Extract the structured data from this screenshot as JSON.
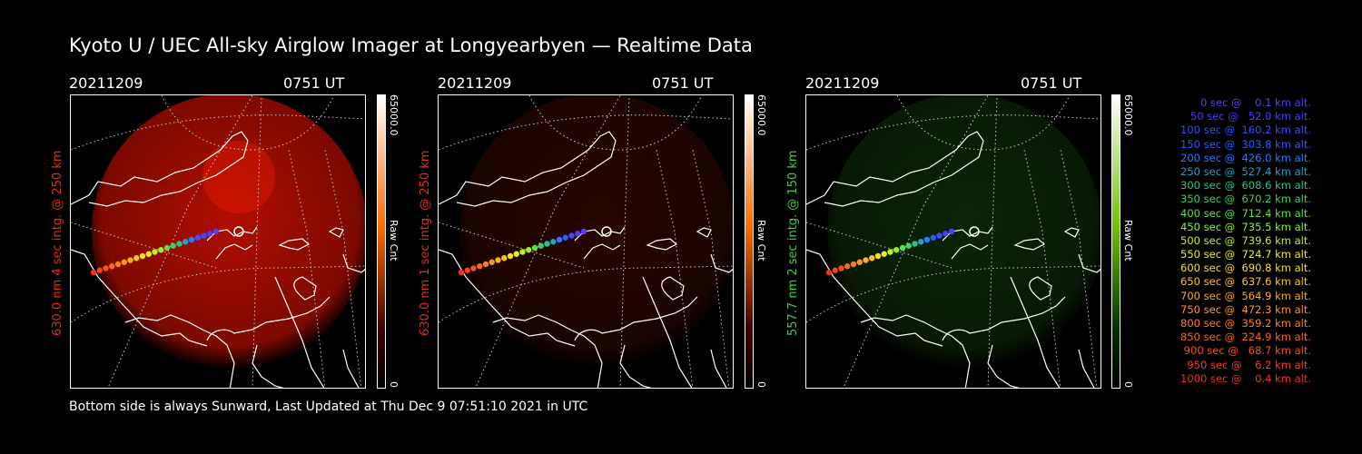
{
  "title": "Kyoto U / UEC All-sky Airglow Imager at Longyearbyen — Realtime Data",
  "footer": "Bottom side is always Sunward, Last Updated at Thu Dec  9 07:51:10 2021 in UTC",
  "panels": [
    {
      "date": "20211209",
      "time": "0751 UT",
      "ylabel": "630.0 nm 4 sec intg. @ 250 km",
      "label_color": "#e03020",
      "cbar_max": "65000.0",
      "cbar_min": "0",
      "cbar_label": "Raw Cnt",
      "cbar_top": "#ffffff",
      "cbar_mid": "#ff6a00",
      "cbar_bottom": "#400000",
      "glow": "#d01000",
      "glow_level": 0.85
    },
    {
      "date": "20211209",
      "time": "0751 UT",
      "ylabel": "630.0 nm 1 sec intg. @ 250 km",
      "label_color": "#e03020",
      "cbar_max": "65000.0",
      "cbar_min": "0",
      "cbar_label": "Raw Cnt",
      "cbar_top": "#ffffff",
      "cbar_mid": "#ff6a00",
      "cbar_bottom": "#400000",
      "glow": "#701000",
      "glow_level": 0.35
    },
    {
      "date": "20211209",
      "time": "0751 UT",
      "ylabel": "557.7 nm 2 sec intg. @ 150 km",
      "label_color": "#40d040",
      "cbar_max": "65000.0",
      "cbar_min": "0",
      "cbar_label": "Raw Cnt",
      "cbar_top": "#ffffff",
      "cbar_mid": "#70c000",
      "cbar_bottom": "#003000",
      "glow": "#1a5010",
      "glow_level": 0.45
    }
  ],
  "legend": [
    {
      "text": "   0 sec @    0.1 km alt.",
      "color": "#5a3cff"
    },
    {
      "text": "  50 sec @   52.0 km alt.",
      "color": "#4a3cff"
    },
    {
      "text": " 100 sec @  160.2 km alt.",
      "color": "#3a4cff"
    },
    {
      "text": " 150 sec @  303.8 km alt.",
      "color": "#2a5cff"
    },
    {
      "text": " 200 sec @  426.0 km alt.",
      "color": "#2a7cff"
    },
    {
      "text": " 250 sec @  527.4 km alt.",
      "color": "#2aa0c0"
    },
    {
      "text": " 300 sec @  608.6 km alt.",
      "color": "#30c090"
    },
    {
      "text": " 350 sec @  670.2 km alt.",
      "color": "#40d060"
    },
    {
      "text": " 400 sec @  712.4 km alt.",
      "color": "#60e040"
    },
    {
      "text": " 450 sec @  735.5 km alt.",
      "color": "#90f030"
    },
    {
      "text": " 500 sec @  739.6 km alt.",
      "color": "#c0f020"
    },
    {
      "text": " 550 sec @  724.7 km alt.",
      "color": "#e8f020"
    },
    {
      "text": " 600 sec @  690.8 km alt.",
      "color": "#f8e020"
    },
    {
      "text": " 650 sec @  637.6 km alt.",
      "color": "#f8c820"
    },
    {
      "text": " 700 sec @  564.9 km alt.",
      "color": "#f8b020"
    },
    {
      "text": " 750 sec @  472.3 km alt.",
      "color": "#f89820"
    },
    {
      "text": " 800 sec @  359.2 km alt.",
      "color": "#f88020"
    },
    {
      "text": " 850 sec @  224.9 km alt.",
      "color": "#f86820"
    },
    {
      "text": " 900 sec @   68.7 km alt.",
      "color": "#f85020"
    },
    {
      "text": " 950 sec @    6.2 km alt.",
      "color": "#f84020"
    },
    {
      "text": "1000 sec @    0.4 km alt.",
      "color": "#f83020"
    }
  ]
}
